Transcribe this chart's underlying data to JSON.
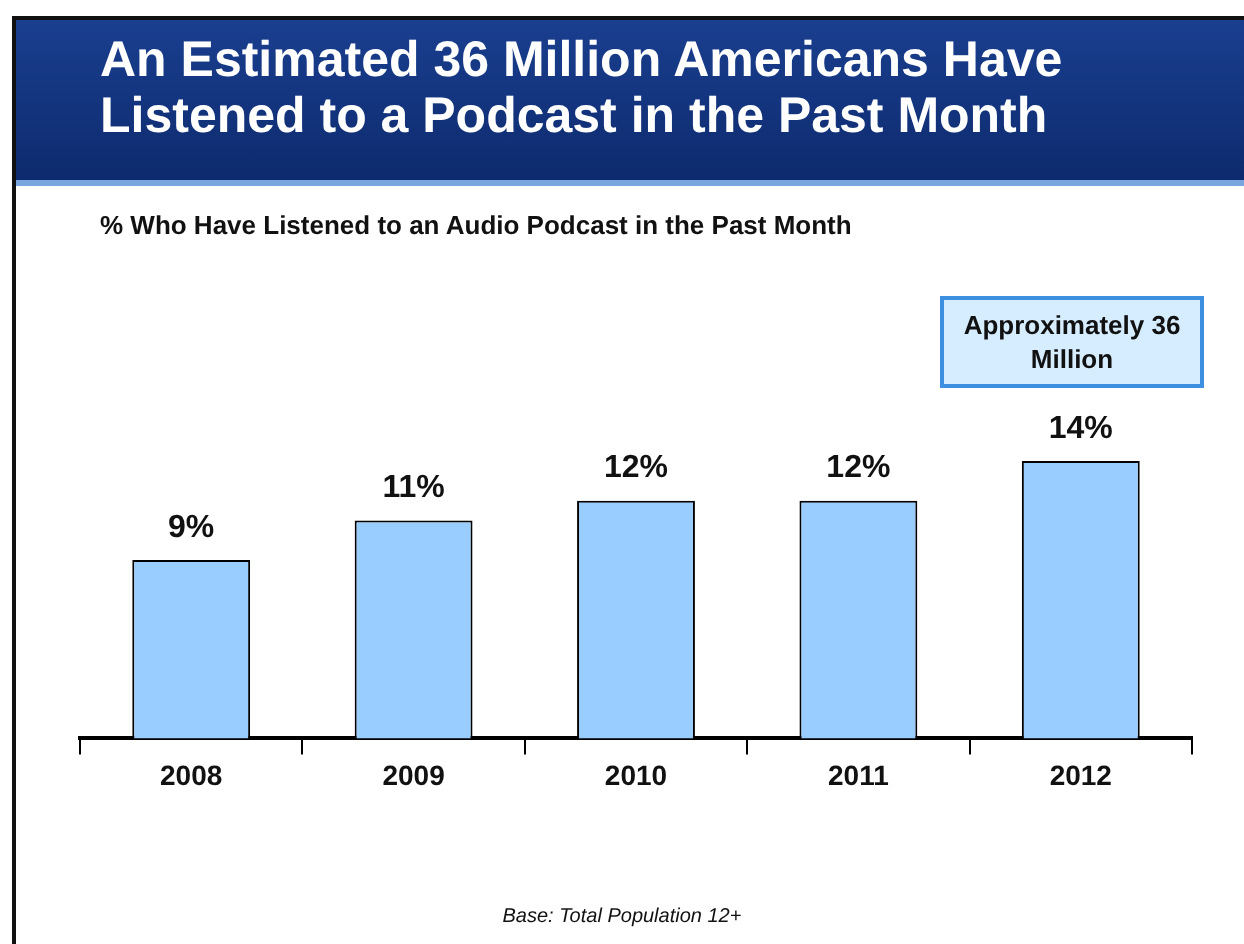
{
  "chart_data": {
    "type": "bar",
    "title": "An Estimated 36 Million Americans Have Listened to a Podcast in the Past Month",
    "subtitle": "% Who Have Listened to an Audio Podcast in the Past Month",
    "categories": [
      "2008",
      "2009",
      "2010",
      "2011",
      "2012"
    ],
    "values": [
      9,
      11,
      12,
      12,
      14
    ],
    "value_labels": [
      "9%",
      "11%",
      "12%",
      "12%",
      "14%"
    ],
    "color": "#99ccff",
    "grid": false,
    "legend": false,
    "tick_labels": "x",
    "annotations": [
      "Approximately 36 Million",
      "Base:  Total Population  12+"
    ]
  }
}
